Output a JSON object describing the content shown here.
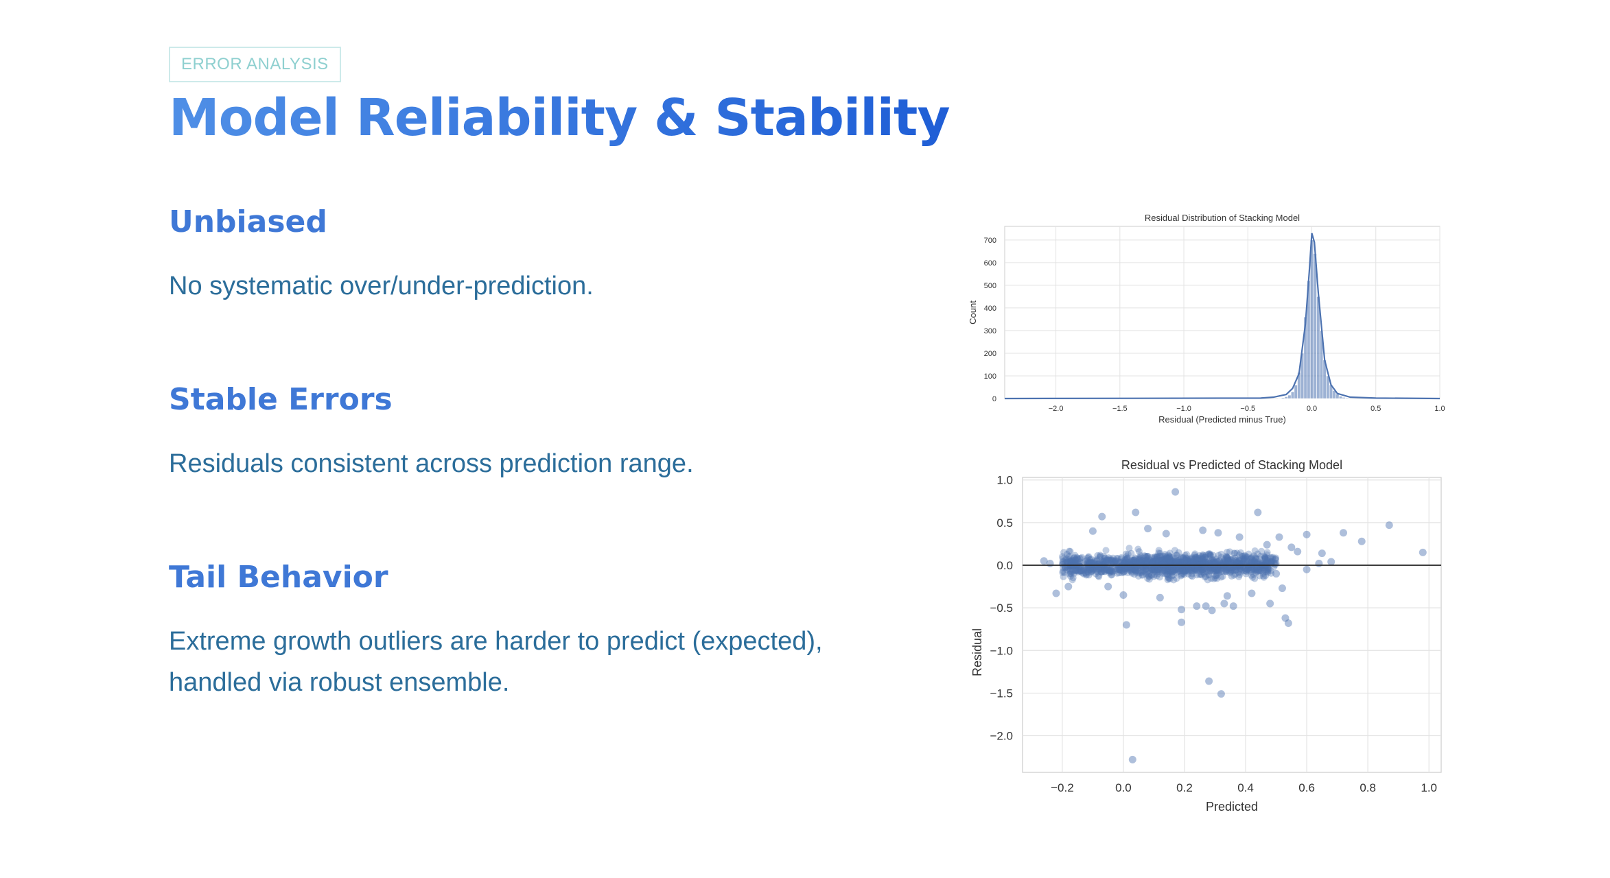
{
  "tag": "ERROR ANALYSIS",
  "title": "Model Reliability & Stability",
  "sections": [
    {
      "heading": "Unbiased",
      "body": "No systematic over/under-prediction."
    },
    {
      "heading": "Stable Errors",
      "body": "Residuals consistent across prediction range."
    },
    {
      "heading": "Tail Behavior",
      "body": "Extreme growth outliers are harder to predict (expected), handled via robust ensemble."
    }
  ],
  "colors": {
    "accent": "#3f78d6",
    "body_text": "#2b6d9a",
    "series": "#4c72b0",
    "tag_border": "#cdeaea"
  },
  "chart_data": [
    {
      "type": "bar",
      "title": "Residual Distribution of Stacking Model",
      "xlabel": "Residual (Predicted minus True)",
      "ylabel": "Count",
      "xlim": [
        -2.4,
        1.0
      ],
      "ylim": [
        0,
        760
      ],
      "xticks": [
        -2.0,
        -1.5,
        -1.0,
        -0.5,
        0.0,
        0.5,
        1.0
      ],
      "xtick_labels": [
        "−2.0",
        "−1.5",
        "−1.0",
        "−0.5",
        "0.0",
        "0.5",
        "1.0"
      ],
      "yticks": [
        0,
        100,
        200,
        300,
        400,
        500,
        600,
        700
      ],
      "grid": true,
      "bin_width": 0.025,
      "bins": [
        {
          "x": -0.25,
          "count": 2
        },
        {
          "x": -0.225,
          "count": 4
        },
        {
          "x": -0.2,
          "count": 8
        },
        {
          "x": -0.175,
          "count": 15
        },
        {
          "x": -0.15,
          "count": 30
        },
        {
          "x": -0.125,
          "count": 60
        },
        {
          "x": -0.1,
          "count": 115
        },
        {
          "x": -0.075,
          "count": 200
        },
        {
          "x": -0.05,
          "count": 360
        },
        {
          "x": -0.025,
          "count": 520
        },
        {
          "x": 0.0,
          "count": 700
        },
        {
          "x": 0.025,
          "count": 640
        },
        {
          "x": 0.05,
          "count": 450
        },
        {
          "x": 0.075,
          "count": 300
        },
        {
          "x": 0.1,
          "count": 170
        },
        {
          "x": 0.125,
          "count": 100
        },
        {
          "x": 0.15,
          "count": 60
        },
        {
          "x": 0.175,
          "count": 35
        },
        {
          "x": 0.2,
          "count": 20
        },
        {
          "x": 0.225,
          "count": 10
        },
        {
          "x": 0.25,
          "count": 5
        },
        {
          "x": 0.275,
          "count": 3
        }
      ],
      "kde": [
        {
          "x": -2.4,
          "y": 0
        },
        {
          "x": -0.4,
          "y": 2
        },
        {
          "x": -0.3,
          "y": 6
        },
        {
          "x": -0.2,
          "y": 18
        },
        {
          "x": -0.15,
          "y": 45
        },
        {
          "x": -0.1,
          "y": 110
        },
        {
          "x": -0.05,
          "y": 330
        },
        {
          "x": -0.02,
          "y": 560
        },
        {
          "x": 0.0,
          "y": 730
        },
        {
          "x": 0.02,
          "y": 690
        },
        {
          "x": 0.05,
          "y": 470
        },
        {
          "x": 0.1,
          "y": 170
        },
        {
          "x": 0.15,
          "y": 60
        },
        {
          "x": 0.2,
          "y": 22
        },
        {
          "x": 0.3,
          "y": 6
        },
        {
          "x": 0.5,
          "y": 2
        },
        {
          "x": 1.0,
          "y": 0
        }
      ]
    },
    {
      "type": "scatter",
      "title": "Residual vs Predicted of Stacking Model",
      "xlabel": "Predicted",
      "ylabel": "Residual",
      "xlim": [
        -0.33,
        1.04
      ],
      "ylim": [
        -2.43,
        1.03
      ],
      "xticks": [
        -0.2,
        0.0,
        0.2,
        0.4,
        0.6,
        0.8,
        1.0
      ],
      "xtick_labels": [
        "−0.2",
        "0.0",
        "0.2",
        "0.4",
        "0.6",
        "0.8",
        "1.0"
      ],
      "yticks": [
        1.0,
        0.5,
        0.0,
        -0.5,
        -1.0,
        -1.5,
        -2.0
      ],
      "ytick_labels": [
        "1.0",
        "0.5",
        "0.0",
        "−0.5",
        "−1.0",
        "−1.5",
        "−2.0"
      ],
      "grid": true,
      "reference_line_y": 0.0,
      "points": [
        [
          0.17,
          0.86
        ],
        [
          0.04,
          0.62
        ],
        [
          -0.07,
          0.57
        ],
        [
          0.44,
          0.62
        ],
        [
          0.87,
          0.47
        ],
        [
          0.98,
          0.15
        ],
        [
          0.72,
          0.38
        ],
        [
          0.78,
          0.28
        ],
        [
          0.6,
          0.36
        ],
        [
          0.65,
          0.14
        ],
        [
          0.68,
          0.04
        ],
        [
          0.51,
          0.33
        ],
        [
          0.47,
          0.24
        ],
        [
          0.55,
          0.21
        ],
        [
          0.6,
          -0.05
        ],
        [
          0.31,
          0.38
        ],
        [
          0.26,
          0.41
        ],
        [
          0.14,
          0.37
        ],
        [
          0.08,
          0.43
        ],
        [
          0.38,
          0.33
        ],
        [
          -0.1,
          0.4
        ],
        [
          0.0,
          -0.35
        ],
        [
          0.12,
          -0.38
        ],
        [
          0.19,
          -0.52
        ],
        [
          0.27,
          -0.48
        ],
        [
          0.34,
          -0.36
        ],
        [
          0.36,
          -0.48
        ],
        [
          0.53,
          -0.62
        ],
        [
          0.54,
          -0.68
        ],
        [
          0.48,
          -0.45
        ],
        [
          0.42,
          -0.33
        ],
        [
          0.52,
          -0.27
        ],
        [
          0.01,
          -0.7
        ],
        [
          0.19,
          -0.67
        ],
        [
          0.29,
          -0.53
        ],
        [
          -0.05,
          -0.25
        ],
        [
          -0.18,
          -0.25
        ],
        [
          -0.22,
          -0.33
        ],
        [
          0.24,
          -0.48
        ],
        [
          0.33,
          -0.45
        ],
        [
          0.28,
          -1.36
        ],
        [
          0.32,
          -1.51
        ],
        [
          0.03,
          -2.28
        ],
        [
          -0.24,
          0.02
        ],
        [
          0.64,
          0.02
        ],
        [
          0.57,
          0.16
        ],
        [
          0.45,
          0.02
        ],
        [
          -0.26,
          0.05
        ],
        [
          0.5,
          -0.1
        ],
        [
          0.4,
          0.1
        ]
      ],
      "dense_cluster": {
        "x_range": [
          -0.2,
          0.5
        ],
        "y_spread": 0.2,
        "center_y": 0.0
      }
    }
  ]
}
